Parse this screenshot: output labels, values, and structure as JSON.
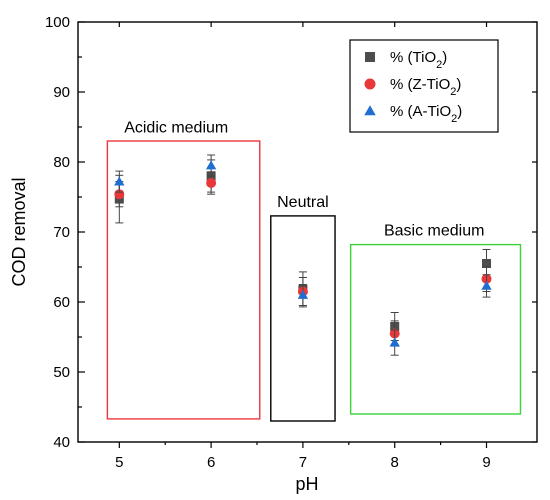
{
  "chart_data": {
    "type": "scatter",
    "xlabel": "pH",
    "ylabel": "COD removal",
    "xlim": [
      4.55,
      9.55
    ],
    "ylim": [
      40,
      100
    ],
    "x_ticks": [
      "5",
      "6",
      "7",
      "8",
      "9"
    ],
    "y_ticks": [
      "40",
      "50",
      "60",
      "70",
      "80",
      "90",
      "100"
    ],
    "x": [
      5,
      6,
      7,
      8,
      9
    ],
    "series": [
      {
        "name_prefix": "% (TiO",
        "name_sub": "2",
        "name_suffix": ")",
        "marker": "square",
        "color": "#4d4d4d",
        "values": [
          74.7,
          78.0,
          61.8,
          56.5,
          65.5
        ],
        "errors": [
          3.4,
          2.3,
          2.5,
          2.0,
          2.0
        ]
      },
      {
        "name_prefix": "% (Z-TiO",
        "name_sub": "2",
        "name_suffix": ")",
        "marker": "circle",
        "color": "#e8383b",
        "values": [
          75.4,
          77.0,
          61.5,
          55.5,
          63.3
        ],
        "errors": [
          1.8,
          1.6,
          2.0,
          1.8,
          1.8
        ]
      },
      {
        "name_prefix": "% (A-TiO",
        "name_sub": "2",
        "name_suffix": ")",
        "marker": "triangle",
        "color": "#1f6fd1",
        "values": [
          77.2,
          79.5,
          61.0,
          54.2,
          62.3
        ],
        "errors": [
          1.5,
          1.5,
          1.5,
          1.8,
          1.6
        ]
      }
    ],
    "regions": [
      {
        "label": "Acidic medium",
        "color": "#e8383b"
      },
      {
        "label": "Neutral",
        "color": "#000000"
      },
      {
        "label": "Basic  medium",
        "color": "#3cd23c"
      }
    ],
    "legend_position": "top-right",
    "grid": false
  }
}
